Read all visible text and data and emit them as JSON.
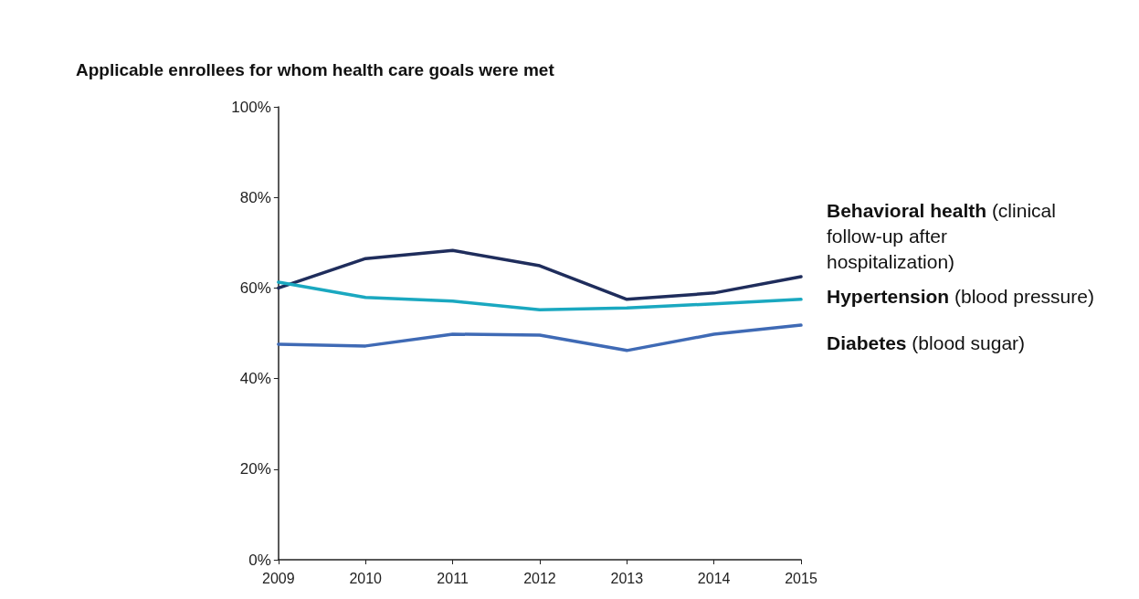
{
  "chart_data": {
    "type": "line",
    "ylabel": "Applicable enrollees for whom health care goals were met",
    "categories": [
      "2009",
      "2010",
      "2011",
      "2012",
      "2013",
      "2014",
      "2015"
    ],
    "series": [
      {
        "name": "Behavioral health (clinical follow-up after hospitalization)",
        "color": "#1f2d5c",
        "values": [
          60,
          66.5,
          68.3,
          64.9,
          57.5,
          58.9,
          62.5
        ]
      },
      {
        "name": "Hypertension (blood pressure)",
        "color": "#1aa8c0",
        "values": [
          61.3,
          57.9,
          57.1,
          55.2,
          55.6,
          56.5,
          57.5
        ]
      },
      {
        "name": "Diabetes (blood sugar)",
        "color": "#3f6ab5",
        "values": [
          47.6,
          47.2,
          49.8,
          49.6,
          46.2,
          49.8,
          51.8
        ]
      }
    ],
    "ylim": [
      0,
      100
    ],
    "yticks": [
      {
        "value": 0,
        "label": "0%"
      },
      {
        "value": 20,
        "label": "20%"
      },
      {
        "value": 40,
        "label": "40%"
      },
      {
        "value": 60,
        "label": "60%"
      },
      {
        "value": 80,
        "label": "80%"
      },
      {
        "value": 100,
        "label": "100%"
      }
    ],
    "grid": false,
    "legend": false,
    "marker": "none",
    "line_style": "solid"
  }
}
